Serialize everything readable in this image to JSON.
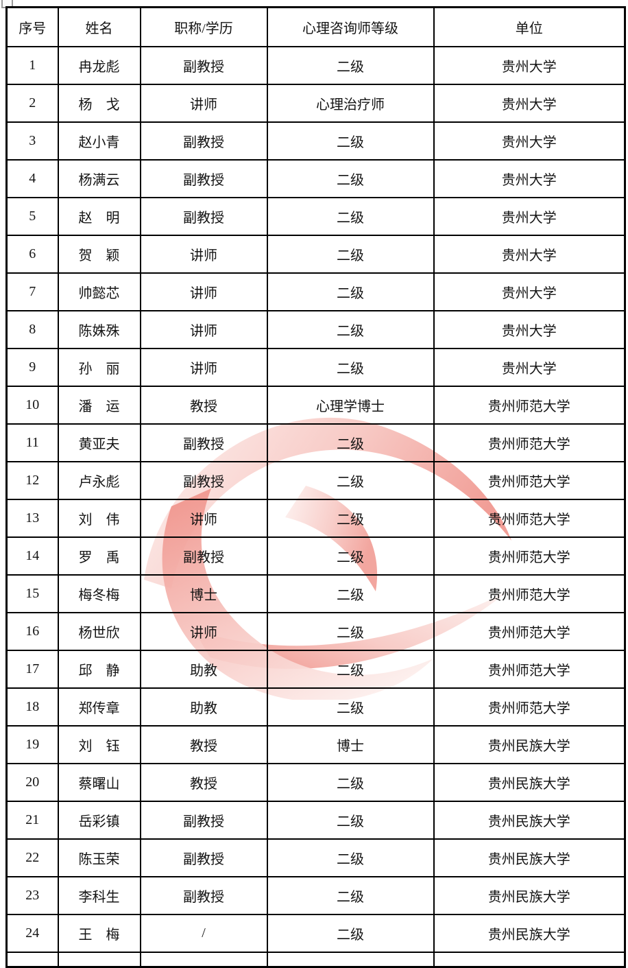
{
  "colors": {
    "background": "#ffffff",
    "table_border": "#000000",
    "text": "#141414",
    "watermark_light": "#fdf1ef",
    "watermark_mid": "#f7c6c1",
    "watermark_strong": "#f0968e"
  },
  "watermark": {
    "name": "red-swirl-logo"
  },
  "table": {
    "headers": [
      "序号",
      "姓名",
      "职称/学历",
      "心理咨询师等级",
      "单位"
    ],
    "rows": [
      [
        "1",
        "冉龙彪",
        "副教授",
        "二级",
        "贵州大学"
      ],
      [
        "2",
        "杨　戈",
        "讲师",
        "心理治疗师",
        "贵州大学"
      ],
      [
        "3",
        "赵小青",
        "副教授",
        "二级",
        "贵州大学"
      ],
      [
        "4",
        "杨满云",
        "副教授",
        "二级",
        "贵州大学"
      ],
      [
        "5",
        "赵　明",
        "副教授",
        "二级",
        "贵州大学"
      ],
      [
        "6",
        "贺　颖",
        "讲师",
        "二级",
        "贵州大学"
      ],
      [
        "7",
        "帅懿芯",
        "讲师",
        "二级",
        "贵州大学"
      ],
      [
        "8",
        "陈姝殊",
        "讲师",
        "二级",
        "贵州大学"
      ],
      [
        "9",
        "孙　丽",
        "讲师",
        "二级",
        "贵州大学"
      ],
      [
        "10",
        "潘　运",
        "教授",
        "心理学博士",
        "贵州师范大学"
      ],
      [
        "11",
        "黄亚夫",
        "副教授",
        "二级",
        "贵州师范大学"
      ],
      [
        "12",
        "卢永彪",
        "副教授",
        "二级",
        "贵州师范大学"
      ],
      [
        "13",
        "刘　伟",
        "讲师",
        "二级",
        "贵州师范大学"
      ],
      [
        "14",
        "罗　禹",
        "副教授",
        "二级",
        "贵州师范大学"
      ],
      [
        "15",
        "梅冬梅",
        "博士",
        "二级",
        "贵州师范大学"
      ],
      [
        "16",
        "杨世欣",
        "讲师",
        "二级",
        "贵州师范大学"
      ],
      [
        "17",
        "邱　静",
        "助教",
        "二级",
        "贵州师范大学"
      ],
      [
        "18",
        "郑传章",
        "助教",
        "二级",
        "贵州师范大学"
      ],
      [
        "19",
        "刘　钰",
        "教授",
        "博士",
        "贵州民族大学"
      ],
      [
        "20",
        "蔡曙山",
        "教授",
        "二级",
        "贵州民族大学"
      ],
      [
        "21",
        "岳彩镇",
        "副教授",
        "二级",
        "贵州民族大学"
      ],
      [
        "22",
        "陈玉荣",
        "副教授",
        "二级",
        "贵州民族大学"
      ],
      [
        "23",
        "李科生",
        "副教授",
        "二级",
        "贵州民族大学"
      ],
      [
        "24",
        "王　梅",
        "/",
        "二级",
        "贵州民族大学"
      ]
    ]
  }
}
